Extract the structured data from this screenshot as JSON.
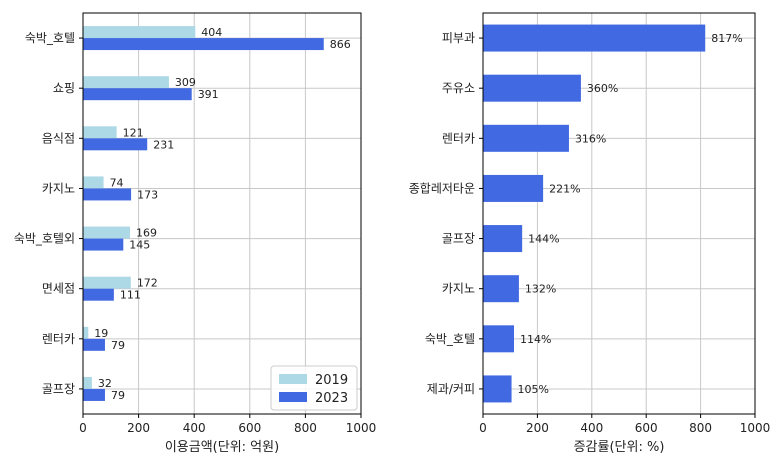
{
  "chart_data": [
    {
      "type": "bar",
      "orientation": "horizontal",
      "categories": [
        "숙박_호텔",
        "쇼핑",
        "음식점",
        "카지노",
        "숙박_호텔외",
        "면세점",
        "렌터카",
        "골프장"
      ],
      "series": [
        {
          "name": "2019",
          "color": "#add8e6",
          "values": [
            404,
            309,
            121,
            74,
            169,
            172,
            19,
            32
          ]
        },
        {
          "name": "2023",
          "color": "#4169e1",
          "values": [
            866,
            391,
            231,
            173,
            145,
            111,
            79,
            79
          ]
        }
      ],
      "xlabel": "이용금액(단위: 억원)",
      "ylabel": "",
      "xlim": [
        0,
        1000
      ],
      "xticks": [
        0,
        200,
        400,
        600,
        800,
        1000
      ],
      "grid": true,
      "legend": "bottom-right",
      "value_suffix": ""
    },
    {
      "type": "bar",
      "orientation": "horizontal",
      "categories": [
        "피부과",
        "주유소",
        "렌터카",
        "종합레저타운",
        "골프장",
        "카지노",
        "숙박_호텔",
        "제과/커피"
      ],
      "series": [
        {
          "name": "",
          "color": "#4169e1",
          "values": [
            817,
            360,
            316,
            221,
            144,
            132,
            114,
            105
          ]
        }
      ],
      "xlabel": "증감률(단위: %)",
      "ylabel": "",
      "xlim": [
        0,
        1000
      ],
      "xticks": [
        0,
        200,
        400,
        600,
        800,
        1000
      ],
      "grid": true,
      "value_suffix": "%"
    }
  ]
}
